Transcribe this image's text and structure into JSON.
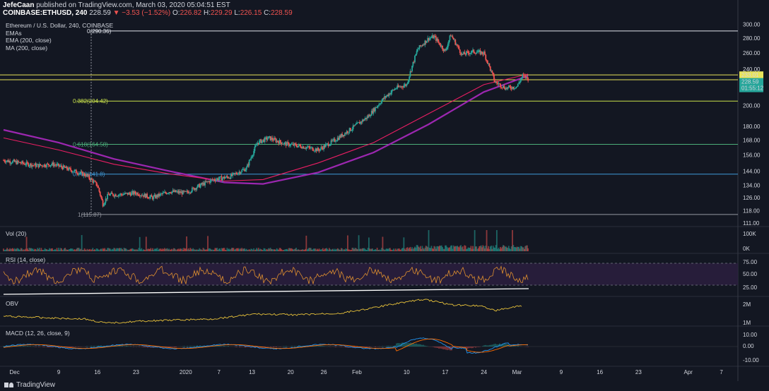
{
  "header": {
    "author": "JefeCaan",
    "published_text": "published on TradingView.com, March 03, 2020 05:04:51 EST",
    "symbol": "COINBASE:ETHUSD, 240",
    "last_price": "228.59",
    "change": "▼ −3.53 (−1.52%)",
    "ohlc_o_label": "O:",
    "ohlc_o": "226.82",
    "ohlc_h_label": "H:",
    "ohlc_h": "229.29",
    "ohlc_l_label": "L:",
    "ohlc_l": "226.15",
    "ohlc_c_label": "C:",
    "ohlc_c": "228.59"
  },
  "legend": {
    "title": "Ethereum / U.S. Dollar, 240, COINBASE",
    "item1": "EMAs",
    "item2": "EMA (200, close)",
    "item3": "MA (200, close)"
  },
  "panes": {
    "vol": "Vol (20)",
    "rsi": "RSI (14, close)",
    "obv": "OBV",
    "macd": "MACD (12, 26, close, 9)"
  },
  "price_axis": {
    "ticks": [
      "300.00",
      "280.00",
      "260.00",
      "240.00",
      "220.00",
      "200.00",
      "180.00",
      "168.00",
      "156.00",
      "144.00",
      "134.00",
      "126.00",
      "118.00",
      "111.00"
    ],
    "highlight_price": "233.01",
    "current_price": "228.59",
    "countdown": "01:55:12"
  },
  "vol_axis": {
    "ticks": [
      "100K",
      "0K"
    ]
  },
  "rsi_axis": {
    "ticks": [
      "75.00",
      "50.00",
      "25.00"
    ]
  },
  "obv_axis": {
    "ticks": [
      "2M",
      "1M"
    ]
  },
  "macd_axis": {
    "ticks": [
      "10.00",
      "0.00",
      "-10.00"
    ]
  },
  "time_axis": {
    "labels": [
      "Dec",
      "9",
      "16",
      "23",
      "2020",
      "7",
      "13",
      "20",
      "26",
      "Feb",
      "10",
      "17",
      "24",
      "Mar",
      "9",
      "16",
      "23",
      "Apr",
      "7"
    ]
  },
  "fib_levels": [
    {
      "label": "0(290.36)",
      "price": 290.36,
      "color": "#e0e3eb"
    },
    {
      "label": "0.382(204.42)",
      "price": 204.42,
      "color": "#c8e04a"
    },
    {
      "label": "0.618(164.58)",
      "price": 164.58,
      "color": "#4caf7a"
    },
    {
      "label": "0.786(141.8)",
      "price": 141.8,
      "color": "#3f9ad8"
    },
    {
      "label": "1(115.87)",
      "price": 115.87,
      "color": "#9598a1"
    }
  ],
  "horizontal_lines": [
    {
      "price": 233.01,
      "color": "#e8e35a"
    },
    {
      "price": 227.5,
      "color": "#e8e35a"
    }
  ],
  "chart_data": {
    "type": "line",
    "title": "Ethereum / U.S. Dollar, 240, COINBASE",
    "x_range": [
      "2019-11-29",
      "2020-04-10"
    ],
    "y_scale": "log",
    "ylim": [
      111,
      305
    ],
    "grid": false,
    "colors": {
      "up": "#26a69a",
      "down": "#ef5350",
      "ema200": "#9c27b0",
      "ma200": "#e91e63"
    },
    "price_path": [
      [
        "2019-11-29",
        152
      ],
      [
        "2019-12-02",
        150
      ],
      [
        "2019-12-05",
        148
      ],
      [
        "2019-12-08",
        149
      ],
      [
        "2019-12-11",
        145
      ],
      [
        "2019-12-14",
        141
      ],
      [
        "2019-12-16",
        134
      ],
      [
        "2019-12-17",
        122
      ],
      [
        "2019-12-18",
        128
      ],
      [
        "2019-12-20",
        128
      ],
      [
        "2019-12-23",
        129
      ],
      [
        "2019-12-26",
        126
      ],
      [
        "2019-12-29",
        130
      ],
      [
        "2020-01-01",
        129
      ],
      [
        "2020-01-03",
        133
      ],
      [
        "2020-01-06",
        138
      ],
      [
        "2020-01-09",
        140
      ],
      [
        "2020-01-12",
        146
      ],
      [
        "2020-01-14",
        166
      ],
      [
        "2020-01-16",
        170
      ],
      [
        "2020-01-19",
        165
      ],
      [
        "2020-01-22",
        163
      ],
      [
        "2020-01-25",
        160
      ],
      [
        "2020-01-28",
        168
      ],
      [
        "2020-01-31",
        178
      ],
      [
        "2020-02-03",
        189
      ],
      [
        "2020-02-06",
        208
      ],
      [
        "2020-02-08",
        218
      ],
      [
        "2020-02-10",
        222
      ],
      [
        "2020-02-12",
        265
      ],
      [
        "2020-02-14",
        280
      ],
      [
        "2020-02-15",
        282
      ],
      [
        "2020-02-17",
        262
      ],
      [
        "2020-02-18",
        285
      ],
      [
        "2020-02-20",
        258
      ],
      [
        "2020-02-22",
        262
      ],
      [
        "2020-02-24",
        260
      ],
      [
        "2020-02-26",
        225
      ],
      [
        "2020-02-28",
        218
      ],
      [
        "2020-03-01",
        220
      ],
      [
        "2020-03-02",
        232
      ],
      [
        "2020-03-03",
        228.59
      ]
    ],
    "series": [
      {
        "name": "EMA (200, close)",
        "points": [
          [
            "2019-11-29",
            177
          ],
          [
            "2019-12-09",
            166
          ],
          [
            "2019-12-19",
            153
          ],
          [
            "2019-12-29",
            144
          ],
          [
            "2020-01-08",
            136
          ],
          [
            "2020-01-15",
            135
          ],
          [
            "2020-01-25",
            143
          ],
          [
            "2020-02-04",
            158
          ],
          [
            "2020-02-14",
            182
          ],
          [
            "2020-02-24",
            214
          ],
          [
            "2020-03-03",
            232
          ]
        ]
      },
      {
        "name": "MA (200, close)",
        "points": [
          [
            "2019-11-29",
            170
          ],
          [
            "2019-12-09",
            160
          ],
          [
            "2019-12-19",
            149
          ],
          [
            "2019-12-29",
            142
          ],
          [
            "2020-01-08",
            137
          ],
          [
            "2020-01-15",
            138
          ],
          [
            "2020-01-25",
            150
          ],
          [
            "2020-02-04",
            166
          ],
          [
            "2020-02-14",
            192
          ],
          [
            "2020-02-24",
            222
          ],
          [
            "2020-03-03",
            234
          ]
        ]
      }
    ]
  }
}
